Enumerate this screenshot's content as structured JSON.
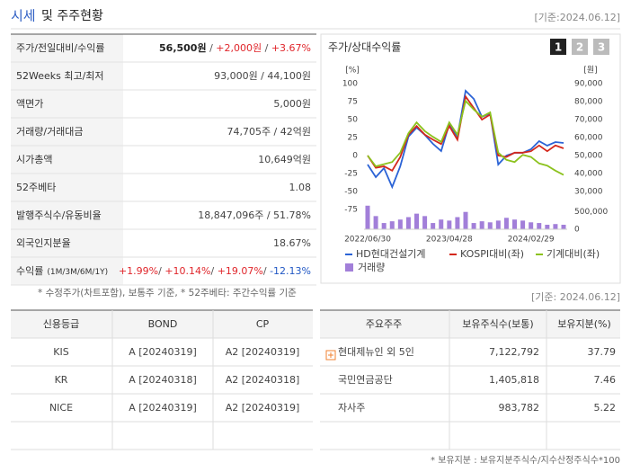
{
  "header": {
    "title": "시세",
    "title_rest": "및 주주현황",
    "date": "[기준:2024.06.12]"
  },
  "summary": {
    "rows": [
      {
        "label": "주가/전일대비/수익률",
        "parts": [
          {
            "text": "56,500원",
            "color": "#222",
            "bold": true
          },
          {
            "text": " / ",
            "color": "#555"
          },
          {
            "text": "+2,000원",
            "color": "#e0262b"
          },
          {
            "text": " / ",
            "color": "#555"
          },
          {
            "text": "+3.67%",
            "color": "#e0262b"
          }
        ]
      },
      {
        "label": "52Weeks 최고/최저",
        "parts": [
          {
            "text": "93,000원 / 44,100원",
            "color": "#444"
          }
        ]
      },
      {
        "label": "액면가",
        "parts": [
          {
            "text": "5,000원",
            "color": "#444"
          }
        ]
      },
      {
        "label": "거래량/거래대금",
        "parts": [
          {
            "text": "74,705주 / 42억원",
            "color": "#444"
          }
        ]
      },
      {
        "label": "시가총액",
        "parts": [
          {
            "text": "10,649억원",
            "color": "#444"
          }
        ]
      },
      {
        "label": "52주베타",
        "parts": [
          {
            "text": "1.08",
            "color": "#444"
          }
        ]
      },
      {
        "label": "발행주식수/유동비율",
        "parts": [
          {
            "text": "18,847,096주 / 51.78%",
            "color": "#444"
          }
        ]
      },
      {
        "label": "외국인지분율",
        "parts": [
          {
            "text": "18.67%",
            "color": "#444"
          }
        ]
      },
      {
        "label": "수익률",
        "label_note": "(1M/3M/6M/1Y)",
        "parts": [
          {
            "text": "+1.99%",
            "color": "#e0262b"
          },
          {
            "text": "/ ",
            "color": "#555"
          },
          {
            "text": "+10.14%",
            "color": "#e0262b"
          },
          {
            "text": "/ ",
            "color": "#555"
          },
          {
            "text": "+19.07%",
            "color": "#e0262b"
          },
          {
            "text": "/ ",
            "color": "#555"
          },
          {
            "text": "-12.13%",
            "color": "#2057c4"
          }
        ]
      }
    ],
    "note": "* 수정주가(차트포함), 보통주 기준, * 52주베타: 주간수익률 기준"
  },
  "chart_panel": {
    "title": "주가/상대수익률",
    "tabs": [
      "1",
      "2",
      "3"
    ],
    "active_tab": 0
  },
  "chart_data": {
    "type": "line",
    "ylabel": "[%]",
    "y2label": "[원]",
    "categories": [
      "2022/06/30",
      null,
      null,
      null,
      null,
      null,
      null,
      null,
      null,
      null,
      "2023/04/28",
      null,
      null,
      null,
      null,
      null,
      null,
      null,
      null,
      null,
      "2024/02/29",
      null,
      null,
      null,
      null
    ],
    "ylim": [
      -75,
      100
    ],
    "yticks": [
      100,
      75,
      50,
      25,
      0,
      -25,
      -50,
      -75
    ],
    "y2lim": [
      30000,
      90000
    ],
    "y2ticks": [
      {
        "value": 90000,
        "label": "90,000"
      },
      {
        "value": 80000,
        "label": "80,000"
      },
      {
        "value": 70000,
        "label": "70,000"
      },
      {
        "value": 60000,
        "label": "60,000"
      },
      {
        "value": 50000,
        "label": "50,000"
      },
      {
        "value": 40000,
        "label": "40,000"
      },
      {
        "value": 30000,
        "label": "30,000"
      }
    ],
    "grid": false,
    "series": [
      {
        "name": "HD현대건설기계",
        "color": "#2b63d6",
        "axis": "y2",
        "values": [
          45000,
          38000,
          43000,
          32500,
          44000,
          60500,
          65500,
          61500,
          56500,
          52500,
          67500,
          60500,
          86000,
          81500,
          71500,
          73500,
          45000,
          50000,
          51500,
          51500,
          53500,
          58000,
          55500,
          57500,
          57000
        ]
      },
      {
        "name": "KOSPI대비(좌)",
        "color": "#d4281c",
        "values": [
          0,
          -17,
          -15,
          -21,
          -2,
          29,
          41,
          29,
          22,
          16,
          41,
          22,
          82,
          66,
          50,
          57,
          0,
          -2,
          4,
          4,
          6,
          14,
          6,
          14,
          10
        ]
      },
      {
        "name": "기계대비(좌)",
        "color": "#8cc21e",
        "values": [
          0,
          -15,
          -12,
          -9,
          4,
          31,
          46,
          34,
          26,
          19,
          46,
          29,
          76,
          64,
          54,
          60,
          4,
          -6,
          -9,
          1,
          -2,
          -11,
          -14,
          -21,
          -27
        ]
      }
    ],
    "volume": {
      "name": "거래량",
      "color": "#a27fd9",
      "ylim": [
        0,
        700000
      ],
      "yticks": [
        {
          "value": 500000,
          "label": "500,000"
        },
        0
      ],
      "values": [
        680000,
        380000,
        180000,
        230000,
        280000,
        350000,
        450000,
        380000,
        180000,
        280000,
        250000,
        350000,
        500000,
        180000,
        230000,
        200000,
        250000,
        330000,
        280000,
        250000,
        200000,
        180000,
        130000,
        150000,
        130000
      ]
    }
  },
  "credit": {
    "columns": [
      "신용등급",
      "BOND",
      "CP"
    ],
    "rows": [
      [
        "KIS",
        "A [20240319]",
        "A2 [20240319]"
      ],
      [
        "KR",
        "A [20240318]",
        "A2 [20240318]"
      ],
      [
        "NICE",
        "A [20240319]",
        "A2 [20240319]"
      ]
    ]
  },
  "holders": {
    "date": "[기준: 2024.06.12]",
    "columns": [
      "주요주주",
      "보유주식수(보통)",
      "보유지분(%)"
    ],
    "rows": [
      [
        "현대제뉴인 외 5인",
        "7,122,792",
        "37.79"
      ],
      [
        "국민연금공단",
        "1,405,818",
        "7.46"
      ],
      [
        "자사주",
        "983,782",
        "5.22"
      ]
    ],
    "note": "* 보유지분 : 보유지분주식수/지수산정주식수*100"
  }
}
